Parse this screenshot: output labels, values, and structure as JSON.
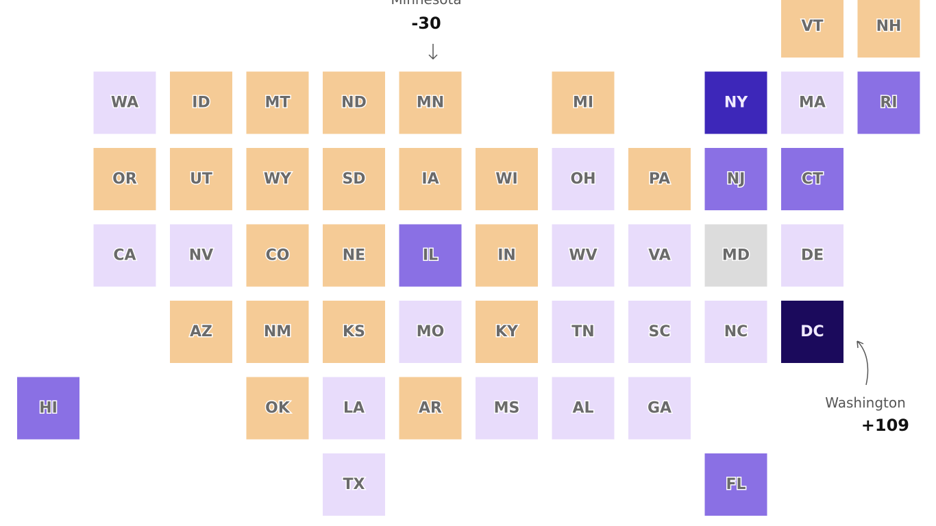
{
  "tiles": [
    {
      "label": "VT",
      "color": "#f5cb96"
    },
    {
      "label": "NH",
      "color": "#f5cb96"
    },
    {
      "label": "WA",
      "color": "#e8dcfb"
    },
    {
      "label": "ID",
      "color": "#f5cb96"
    },
    {
      "label": "MT",
      "color": "#f5cb96"
    },
    {
      "label": "ND",
      "color": "#f5cb96"
    },
    {
      "label": "MN",
      "color": "#f5cb96"
    },
    {
      "label": "MI",
      "color": "#f5cb96"
    },
    {
      "label": "NY",
      "color": "#3d27b9"
    },
    {
      "label": "MA",
      "color": "#e8dcfb"
    },
    {
      "label": "RI",
      "color": "#8a70e4"
    },
    {
      "label": "OR",
      "color": "#f5cb96"
    },
    {
      "label": "UT",
      "color": "#f5cb96"
    },
    {
      "label": "WY",
      "color": "#f5cb96"
    },
    {
      "label": "SD",
      "color": "#f5cb96"
    },
    {
      "label": "IA",
      "color": "#f5cb96"
    },
    {
      "label": "WI",
      "color": "#f5cb96"
    },
    {
      "label": "OH",
      "color": "#e8dcfb"
    },
    {
      "label": "PA",
      "color": "#f5cb96"
    },
    {
      "label": "NJ",
      "color": "#8a70e4"
    },
    {
      "label": "CT",
      "color": "#8a70e4"
    },
    {
      "label": "CA",
      "color": "#e8dcfb"
    },
    {
      "label": "NV",
      "color": "#e8dcfb"
    },
    {
      "label": "CO",
      "color": "#f5cb96"
    },
    {
      "label": "NE",
      "color": "#f5cb96"
    },
    {
      "label": "IL",
      "color": "#8a70e4"
    },
    {
      "label": "IN",
      "color": "#f5cb96"
    },
    {
      "label": "WV",
      "color": "#e8dcfb"
    },
    {
      "label": "VA",
      "color": "#e8dcfb"
    },
    {
      "label": "MD",
      "color": "#dcdcdc"
    },
    {
      "label": "DE",
      "color": "#e8dcfb"
    },
    {
      "label": "AZ",
      "color": "#f5cb96"
    },
    {
      "label": "NM",
      "color": "#f5cb96"
    },
    {
      "label": "KS",
      "color": "#f5cb96"
    },
    {
      "label": "MO",
      "color": "#e8dcfb"
    },
    {
      "label": "KY",
      "color": "#f5cb96"
    },
    {
      "label": "TN",
      "color": "#e8dcfb"
    },
    {
      "label": "SC",
      "color": "#e8dcfb"
    },
    {
      "label": "NC",
      "color": "#e8dcfb"
    },
    {
      "label": "DC",
      "color": "#1b0a5c"
    },
    {
      "label": "HI",
      "color": "#8a70e4"
    },
    {
      "label": "OK",
      "color": "#f5cb96"
    },
    {
      "label": "LA",
      "color": "#e8dcfb"
    },
    {
      "label": "AR",
      "color": "#f5cb96"
    },
    {
      "label": "MS",
      "color": "#e8dcfb"
    },
    {
      "label": "AL",
      "color": "#e8dcfb"
    },
    {
      "label": "GA",
      "color": "#e8dcfb"
    },
    {
      "label": "TX",
      "color": "#e8dcfb"
    },
    {
      "label": "FL",
      "color": "#8a70e4"
    }
  ],
  "annotations": [
    {
      "name": "Minnesota",
      "value": "-30"
    },
    {
      "name": "Washington",
      "value": "+109"
    }
  ]
}
